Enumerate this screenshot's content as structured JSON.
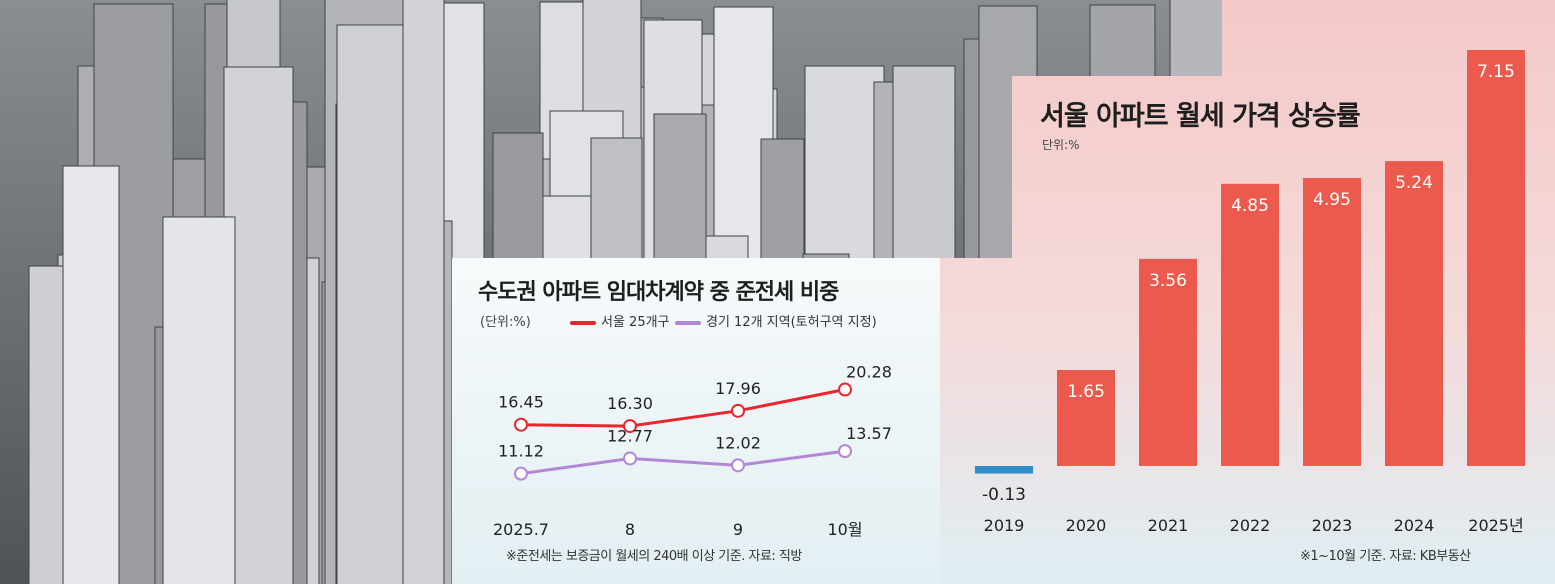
{
  "bar_chart": {
    "title": "서울 아파트 월세 가격 상승률",
    "unit": "단위:%",
    "source": "※1~10월 기준. 자료: KB부동산"
  },
  "line_chart": {
    "title": "수도권 아파트 임대차계약 중 준전세 비중",
    "unit": "(단위:%)",
    "legend_seoul": "서울 25개구",
    "legend_gyeonggi": "경기 12개 지역(토허구역 지정)",
    "note": "※준전세는 보증금이 월세의 240배 이상 기준. 자료: 직방"
  },
  "colors": {
    "bar": "#ec5a4d",
    "bar_negative": "#2f8fc6",
    "seoul_line": "#e8262d",
    "gyeonggi_line": "#b287d6"
  },
  "chart_data": [
    {
      "type": "bar",
      "title": "서울 아파트 월세 가격 상승률",
      "ylabel": "단위:%",
      "categories": [
        "2019",
        "2020",
        "2021",
        "2022",
        "2023",
        "2024",
        "2025년"
      ],
      "values": [
        -0.13,
        1.65,
        3.56,
        4.85,
        4.95,
        5.24,
        7.15
      ],
      "value_labels": [
        "-0.13",
        "1.65",
        "3.56",
        "4.85",
        "4.95",
        "5.24",
        "7.15"
      ],
      "ylim": [
        -0.5,
        7.5
      ],
      "grid": false
    },
    {
      "type": "line",
      "title": "수도권 아파트 임대차계약 중 준전세 비중",
      "ylabel": "(단위:%)",
      "categories": [
        "2025.7",
        "8",
        "9",
        "10월"
      ],
      "series": [
        {
          "name": "서울 25개구",
          "values": [
            16.45,
            16.3,
            17.96,
            20.28
          ],
          "labels": [
            "16.45",
            "16.30",
            "17.96",
            "20.28"
          ]
        },
        {
          "name": "경기 12개 지역(토허구역 지정)",
          "values": [
            11.12,
            12.77,
            12.02,
            13.57
          ],
          "labels": [
            "11.12",
            "12.77",
            "12.02",
            "13.57"
          ]
        }
      ],
      "legend": "top",
      "grid": false
    }
  ]
}
